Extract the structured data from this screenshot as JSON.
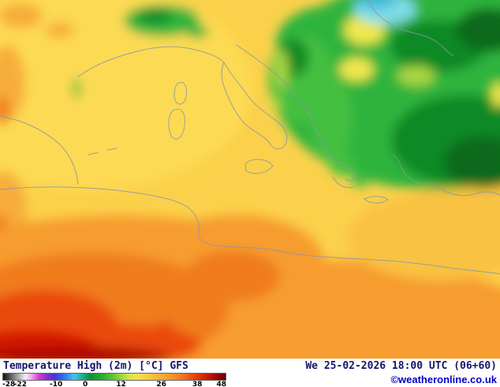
{
  "footer": {
    "title": "Temperature High (2m) [°C] GFS",
    "datetime": "We 25-02-2026 18:00 UTC (06+60)",
    "copyright": "©weatheronline.co.uk"
  },
  "scale": {
    "unit": "°C",
    "min": -28,
    "max": 48,
    "labels": [
      {
        "text": "-28",
        "pos": 0
      },
      {
        "text": "-22",
        "pos": 8
      },
      {
        "text": "-10",
        "pos": 24
      },
      {
        "text": "0",
        "pos": 37
      },
      {
        "text": "12",
        "pos": 53
      },
      {
        "text": "26",
        "pos": 71
      },
      {
        "text": "38",
        "pos": 87
      },
      {
        "text": "48",
        "pos": 100
      }
    ],
    "gradient": [
      {
        "pos": 0,
        "color": "#111111"
      },
      {
        "pos": 10,
        "color": "#f0f0f0"
      },
      {
        "pos": 12,
        "color": "#f7b8f7"
      },
      {
        "pos": 16,
        "color": "#d23ed2"
      },
      {
        "pos": 19,
        "color": "#9332cc"
      },
      {
        "pos": 23,
        "color": "#4633d8"
      },
      {
        "pos": 27,
        "color": "#2b6ff0"
      },
      {
        "pos": 32,
        "color": "#46c2f0"
      },
      {
        "pos": 35,
        "color": "#1fb4a0"
      },
      {
        "pos": 39,
        "color": "#0f8f3c"
      },
      {
        "pos": 44,
        "color": "#23aa28"
      },
      {
        "pos": 49,
        "color": "#59c435"
      },
      {
        "pos": 53,
        "color": "#9ad63f"
      },
      {
        "pos": 57,
        "color": "#d8e648"
      },
      {
        "pos": 60,
        "color": "#f8e04a"
      },
      {
        "pos": 66,
        "color": "#f9c63e"
      },
      {
        "pos": 73,
        "color": "#f8a32e"
      },
      {
        "pos": 80,
        "color": "#f37a1e"
      },
      {
        "pos": 86,
        "color": "#e8430e"
      },
      {
        "pos": 92,
        "color": "#c81a06"
      },
      {
        "pos": 97,
        "color": "#8f0502"
      },
      {
        "pos": 100,
        "color": "#600000"
      }
    ]
  },
  "map": {
    "description": "Mediterranean temperature field, warm yellow/orange south, green/cold northeast",
    "palette": {
      "base": "#fbd14b",
      "pale": "#fdda52",
      "amber": "#f9c243",
      "lightOrange": "#f7ad3a",
      "orange": "#f79c2e",
      "deepOrange": "#f07c1c",
      "redOrange": "#ea4810",
      "red": "#d31505",
      "darkRed": "#b00a03",
      "green": "#2fb43c",
      "brightGreen": "#45bf3f",
      "darkGreen": "#108a28",
      "darkestGreen": "#076b1b",
      "yellowGreen": "#a9d643",
      "pocketYellow": "#efe74e",
      "cyan": "#7fdce8",
      "blue": "#44b9dd"
    }
  }
}
